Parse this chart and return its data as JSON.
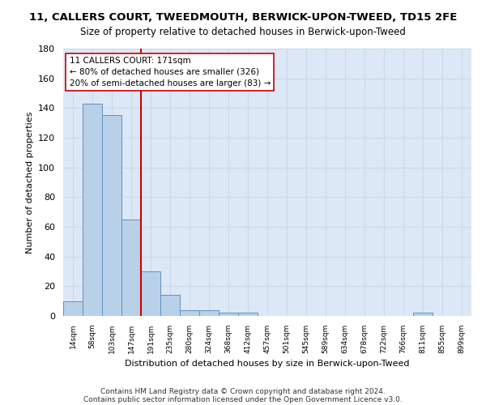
{
  "title": "11, CALLERS COURT, TWEEDMOUTH, BERWICK-UPON-TWEED, TD15 2FE",
  "subtitle": "Size of property relative to detached houses in Berwick-upon-Tweed",
  "xlabel": "Distribution of detached houses by size in Berwick-upon-Tweed",
  "ylabel": "Number of detached properties",
  "categories": [
    "14sqm",
    "58sqm",
    "103sqm",
    "147sqm",
    "191sqm",
    "235sqm",
    "280sqm",
    "324sqm",
    "368sqm",
    "412sqm",
    "457sqm",
    "501sqm",
    "545sqm",
    "589sqm",
    "634sqm",
    "678sqm",
    "722sqm",
    "766sqm",
    "811sqm",
    "855sqm",
    "899sqm"
  ],
  "values": [
    10,
    143,
    135,
    65,
    30,
    14,
    4,
    4,
    2,
    2,
    0,
    0,
    0,
    0,
    0,
    0,
    0,
    0,
    2,
    0,
    0
  ],
  "bar_color": "#b8d0e8",
  "bar_edge_color": "#6090c0",
  "vline_x": 3.5,
  "vline_color": "#cc0000",
  "annotation_line1": "11 CALLERS COURT: 171sqm",
  "annotation_line2": "← 80% of detached houses are smaller (326)",
  "annotation_line3": "20% of semi-detached houses are larger (83) →",
  "annotation_box_color": "#ffffff",
  "annotation_box_edge_color": "#cc0000",
  "ylim": [
    0,
    180
  ],
  "yticks": [
    0,
    20,
    40,
    60,
    80,
    100,
    120,
    140,
    160,
    180
  ],
  "footer1": "Contains HM Land Registry data © Crown copyright and database right 2024.",
  "footer2": "Contains public sector information licensed under the Open Government Licence v3.0.",
  "grid_color": "#c8d8ec",
  "bg_color": "#ffffff",
  "plot_bg_color": "#dce8f5"
}
